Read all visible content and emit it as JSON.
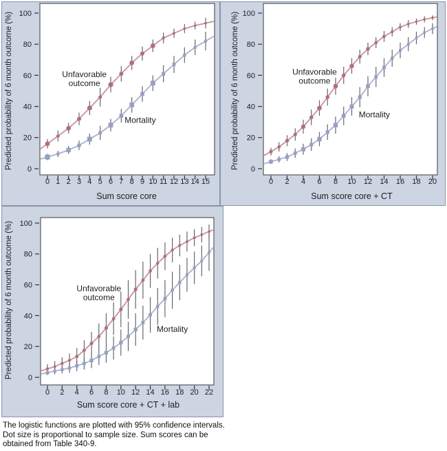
{
  "figure": {
    "caption": {
      "lines": [
        "The logistic functions are plotted with 95% confidence intervals.",
        "Dot size is proportional to sample size.  Sum scores can be",
        "obtained from Table 340-9."
      ]
    },
    "colors": {
      "panel_background": "#cdd4e2",
      "panel_border": "#8794a9",
      "plot_background": "#ffffff",
      "plot_border": "#55595e",
      "error_bar": "#63666f",
      "text": "#1c1d1f",
      "unfavorable_line": "#c6929b",
      "unfavorable_marker": "#b26f7b",
      "mortality_line": "#aab1cd",
      "mortality_marker": "#96a0c3"
    }
  },
  "chart_data": [
    {
      "type": "line",
      "title": "",
      "xlabel": "Sum score core",
      "ylabel": "Predicted probability of 6 month outcome (%)",
      "xlim": [
        0,
        15
      ],
      "ylim": [
        0,
        100
      ],
      "x_tick_step": 1,
      "y_ticks": [
        0,
        20,
        40,
        60,
        80,
        100
      ],
      "grid": false,
      "error_bars": "95% confidence intervals",
      "x": [
        0,
        1,
        2,
        3,
        4,
        5,
        6,
        7,
        8,
        9,
        10,
        11,
        12,
        13,
        14,
        15
      ],
      "series": [
        {
          "name": "Unfavorable outcome",
          "marker": "circle",
          "line_color": "#c6929b",
          "marker_color": "#b26f7b",
          "values": [
            16,
            21,
            26,
            32,
            39,
            46,
            54,
            61,
            68,
            74,
            79,
            84,
            87,
            90,
            92,
            93.5
          ],
          "ci_half_width": [
            3,
            3.5,
            3.5,
            4,
            4.5,
            6,
            5,
            5,
            4.5,
            4.5,
            4,
            3.5,
            3,
            3,
            2.5,
            3.5
          ],
          "marker_radius": [
            3.4,
            2.4,
            3.4,
            3.0,
            3.6,
            2.6,
            3.6,
            3.0,
            3.4,
            3.0,
            3.4,
            2.2,
            2.0,
            1.9,
            1.8,
            1.8
          ]
        },
        {
          "name": "Mortality",
          "marker": "square",
          "line_color": "#aab1cd",
          "marker_color": "#96a0c3",
          "values": [
            7.5,
            9.5,
            12,
            15,
            19,
            23,
            28,
            34,
            41,
            48,
            55,
            61,
            67,
            73,
            78,
            82
          ],
          "ci_half_width": [
            2,
            2,
            2.5,
            3,
            3.5,
            4.5,
            4,
            4.5,
            5,
            5,
            5,
            5.5,
            5.5,
            5,
            5,
            6
          ],
          "marker_radius": [
            3.6,
            2.0,
            3.2,
            2.6,
            3.4,
            2.4,
            3.4,
            2.8,
            3.4,
            2.8,
            3.4,
            2.6,
            2.4,
            2.2,
            2.0,
            2.0
          ]
        }
      ],
      "annotations": [
        {
          "lines": [
            "Unfavorable",
            "outcome"
          ],
          "x": 3.5,
          "y": 56
        },
        {
          "lines": [
            "Mortality"
          ],
          "x": 8.8,
          "y": 29.5
        }
      ]
    },
    {
      "type": "line",
      "title": "",
      "xlabel": "Sum score core + CT",
      "ylabel": "Predicted probability of 6 month outcome (%)",
      "xlim": [
        0,
        20
      ],
      "ylim": [
        0,
        100
      ],
      "x_tick_step": 2,
      "y_ticks": [
        0,
        20,
        40,
        60,
        80,
        100
      ],
      "grid": false,
      "error_bars": "95% confidence intervals",
      "x": [
        0,
        1,
        2,
        3,
        4,
        5,
        6,
        7,
        8,
        9,
        10,
        11,
        12,
        13,
        14,
        15,
        16,
        17,
        18,
        19,
        20
      ],
      "series": [
        {
          "name": "Unfavorable outcome",
          "marker": "circle",
          "line_color": "#c6929b",
          "marker_color": "#b26f7b",
          "values": [
            11,
            14,
            18,
            22,
            27,
            33,
            39,
            46,
            53,
            60,
            66,
            72,
            77,
            81,
            85,
            88,
            91,
            93,
            94.5,
            96,
            97
          ],
          "ci_half_width": [
            2.5,
            3,
            3.5,
            4,
            4.5,
            5,
            5,
            5.5,
            5.5,
            5.5,
            5,
            4.5,
            4,
            3.5,
            3.5,
            3,
            2.5,
            2.5,
            2,
            2,
            1.5
          ],
          "marker_radius": [
            2.6,
            2.4,
            2.8,
            2.6,
            3.2,
            2.8,
            3.4,
            2.8,
            3.4,
            2.8,
            3.2,
            2.6,
            2.8,
            2.4,
            2.4,
            2.2,
            2.0,
            1.9,
            1.8,
            1.8,
            1.7
          ]
        },
        {
          "name": "Mortality",
          "marker": "square",
          "line_color": "#aab1cd",
          "marker_color": "#96a0c3",
          "values": [
            4.5,
            6,
            7.5,
            10,
            12.5,
            15.5,
            19,
            23.5,
            28,
            34,
            40,
            46,
            53,
            59,
            65,
            71,
            76,
            80,
            84,
            87.5,
            90
          ],
          "ci_half_width": [
            1.5,
            2,
            2.5,
            3,
            3.5,
            4,
            4.5,
            5,
            5.5,
            6,
            6,
            6.5,
            6.5,
            6.5,
            6,
            5.5,
            5,
            4.5,
            4,
            3.5,
            3.5
          ],
          "marker_radius": [
            2.8,
            2.2,
            2.6,
            2.4,
            3.0,
            2.6,
            3.2,
            2.6,
            3.2,
            2.8,
            3.0,
            2.6,
            2.8,
            2.4,
            2.4,
            2.2,
            2.0,
            1.9,
            1.8,
            1.8,
            1.8
          ]
        }
      ],
      "annotations": [
        {
          "lines": [
            "Unfavorable",
            "outcome"
          ],
          "x": 5.4,
          "y": 57.5
        },
        {
          "lines": [
            "Mortality"
          ],
          "x": 12.8,
          "y": 33
        }
      ]
    },
    {
      "type": "line",
      "title": "",
      "xlabel": "Sum score core + CT + lab",
      "ylabel": "Predicted probability of 6 month outcome (%)",
      "xlim": [
        0,
        22
      ],
      "ylim": [
        0,
        100
      ],
      "x_tick_step": 2,
      "y_ticks": [
        0,
        20,
        40,
        60,
        80,
        100
      ],
      "grid": false,
      "error_bars": "95% confidence intervals",
      "x": [
        0,
        1,
        2,
        3,
        4,
        5,
        6,
        7,
        8,
        9,
        10,
        11,
        12,
        13,
        14,
        15,
        16,
        17,
        18,
        19,
        20,
        21,
        22
      ],
      "series": [
        {
          "name": "Unfavorable outcome",
          "marker": "circle",
          "line_color": "#c6929b",
          "marker_color": "#b26f7b",
          "values": [
            5.5,
            7,
            9,
            11,
            13.5,
            17.5,
            22,
            26.5,
            32,
            38,
            44,
            50.5,
            57,
            63,
            69,
            74,
            78.5,
            82.5,
            85.5,
            88,
            90.5,
            92.5,
            94.5
          ],
          "ci_half_width": [
            3,
            3.5,
            4,
            4.5,
            5.5,
            6.5,
            7.5,
            8.5,
            9.5,
            10.5,
            11.5,
            12.5,
            12.5,
            12,
            11,
            10,
            9,
            8,
            7,
            6.5,
            5.5,
            5,
            4.5
          ],
          "marker_radius": [
            2.2,
            2.0,
            2.2,
            2.2,
            2.4,
            2.4,
            2.6,
            2.4,
            2.6,
            2.4,
            2.6,
            2.4,
            2.6,
            2.4,
            2.4,
            2.2,
            2.4,
            2.2,
            2.2,
            2.0,
            2.0,
            1.9,
            1.8
          ]
        },
        {
          "name": "Mortality",
          "marker": "square",
          "line_color": "#aab1cd",
          "marker_color": "#96a0c3",
          "values": [
            3,
            4,
            5,
            6,
            7.5,
            9,
            11,
            13.5,
            16,
            19,
            22.5,
            26.5,
            31,
            35.5,
            40.5,
            46,
            51,
            56.5,
            61.5,
            66.5,
            71,
            75.5,
            81
          ],
          "ci_half_width": [
            1.5,
            2,
            2.5,
            3,
            3.5,
            4,
            5,
            5.5,
            6.5,
            7.5,
            8.5,
            9.5,
            10.5,
            11,
            11.5,
            12,
            12,
            12,
            11.5,
            11,
            10.5,
            10,
            12
          ],
          "marker_radius": [
            2.4,
            2.0,
            2.2,
            2.2,
            2.4,
            2.4,
            2.6,
            2.4,
            2.6,
            2.4,
            2.6,
            2.4,
            2.6,
            2.4,
            2.4,
            2.2,
            2.4,
            2.2,
            2.2,
            2.0,
            2.0,
            1.9,
            1.9
          ]
        }
      ],
      "annotations": [
        {
          "lines": [
            "Unfavorable",
            "outcome"
          ],
          "x": 7.0,
          "y": 53
        },
        {
          "lines": [
            "Mortality"
          ],
          "x": 17.0,
          "y": 29.5
        }
      ]
    }
  ]
}
